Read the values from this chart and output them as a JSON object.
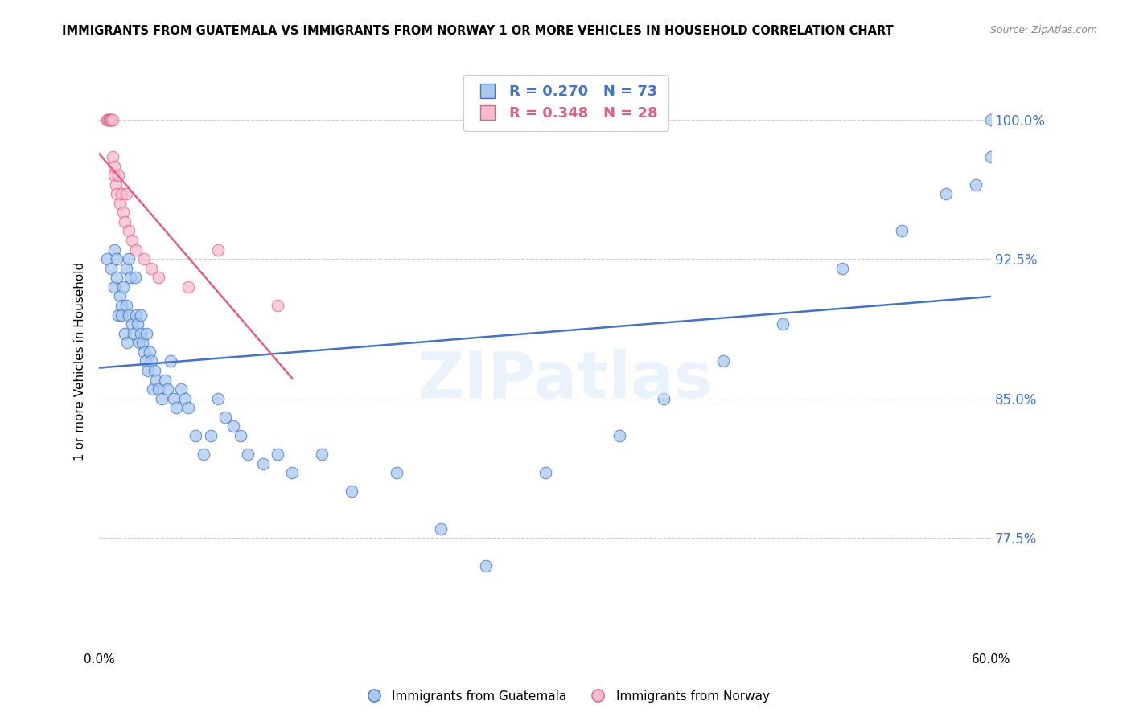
{
  "title": "IMMIGRANTS FROM GUATEMALA VS IMMIGRANTS FROM NORWAY 1 OR MORE VEHICLES IN HOUSEHOLD CORRELATION CHART",
  "source": "Source: ZipAtlas.com",
  "ylabel": "1 or more Vehicles in Household",
  "xlim": [
    0.0,
    0.6
  ],
  "ylim": [
    0.715,
    1.025
  ],
  "ytick_vals": [
    1.0,
    0.925,
    0.85,
    0.775
  ],
  "ytick_labels": [
    "100.0%",
    "92.5%",
    "85.0%",
    "77.5%"
  ],
  "legend_blue_R": "R = 0.270",
  "legend_blue_N": "N = 73",
  "legend_pink_R": "R = 0.348",
  "legend_pink_N": "N = 28",
  "blue_fill": "#A8C8F0",
  "blue_edge": "#4472C4",
  "pink_fill": "#F8BBD0",
  "pink_edge": "#E06080",
  "trend_blue": "#4472C4",
  "trend_pink": "#E06080",
  "guatemala_x": [
    0.005,
    0.008,
    0.01,
    0.01,
    0.012,
    0.012,
    0.013,
    0.014,
    0.015,
    0.015,
    0.016,
    0.017,
    0.018,
    0.018,
    0.019,
    0.02,
    0.02,
    0.021,
    0.022,
    0.023,
    0.024,
    0.025,
    0.026,
    0.027,
    0.028,
    0.028,
    0.029,
    0.03,
    0.031,
    0.032,
    0.033,
    0.034,
    0.035,
    0.036,
    0.037,
    0.038,
    0.04,
    0.042,
    0.044,
    0.046,
    0.048,
    0.05,
    0.052,
    0.055,
    0.058,
    0.06,
    0.065,
    0.07,
    0.075,
    0.08,
    0.085,
    0.09,
    0.095,
    0.1,
    0.11,
    0.12,
    0.13,
    0.15,
    0.17,
    0.2,
    0.23,
    0.26,
    0.3,
    0.35,
    0.38,
    0.42,
    0.46,
    0.5,
    0.54,
    0.57,
    0.59,
    0.6,
    0.6
  ],
  "guatemala_y": [
    0.925,
    0.92,
    0.93,
    0.91,
    0.925,
    0.915,
    0.895,
    0.905,
    0.9,
    0.895,
    0.91,
    0.885,
    0.92,
    0.9,
    0.88,
    0.925,
    0.895,
    0.915,
    0.89,
    0.885,
    0.915,
    0.895,
    0.89,
    0.88,
    0.895,
    0.885,
    0.88,
    0.875,
    0.87,
    0.885,
    0.865,
    0.875,
    0.87,
    0.855,
    0.865,
    0.86,
    0.855,
    0.85,
    0.86,
    0.855,
    0.87,
    0.85,
    0.845,
    0.855,
    0.85,
    0.845,
    0.83,
    0.82,
    0.83,
    0.85,
    0.84,
    0.835,
    0.83,
    0.82,
    0.815,
    0.82,
    0.81,
    0.82,
    0.8,
    0.81,
    0.78,
    0.76,
    0.81,
    0.83,
    0.85,
    0.87,
    0.89,
    0.92,
    0.94,
    0.96,
    0.965,
    0.98,
    1.0
  ],
  "norway_x": [
    0.005,
    0.006,
    0.007,
    0.007,
    0.008,
    0.008,
    0.008,
    0.009,
    0.009,
    0.01,
    0.01,
    0.011,
    0.012,
    0.013,
    0.014,
    0.015,
    0.016,
    0.017,
    0.018,
    0.02,
    0.022,
    0.025,
    0.03,
    0.035,
    0.04,
    0.06,
    0.08,
    0.12
  ],
  "norway_y": [
    1.0,
    1.0,
    1.0,
    1.0,
    1.0,
    1.0,
    1.0,
    1.0,
    0.98,
    0.975,
    0.97,
    0.965,
    0.96,
    0.97,
    0.955,
    0.96,
    0.95,
    0.945,
    0.96,
    0.94,
    0.935,
    0.93,
    0.925,
    0.92,
    0.915,
    0.91,
    0.93,
    0.9
  ]
}
